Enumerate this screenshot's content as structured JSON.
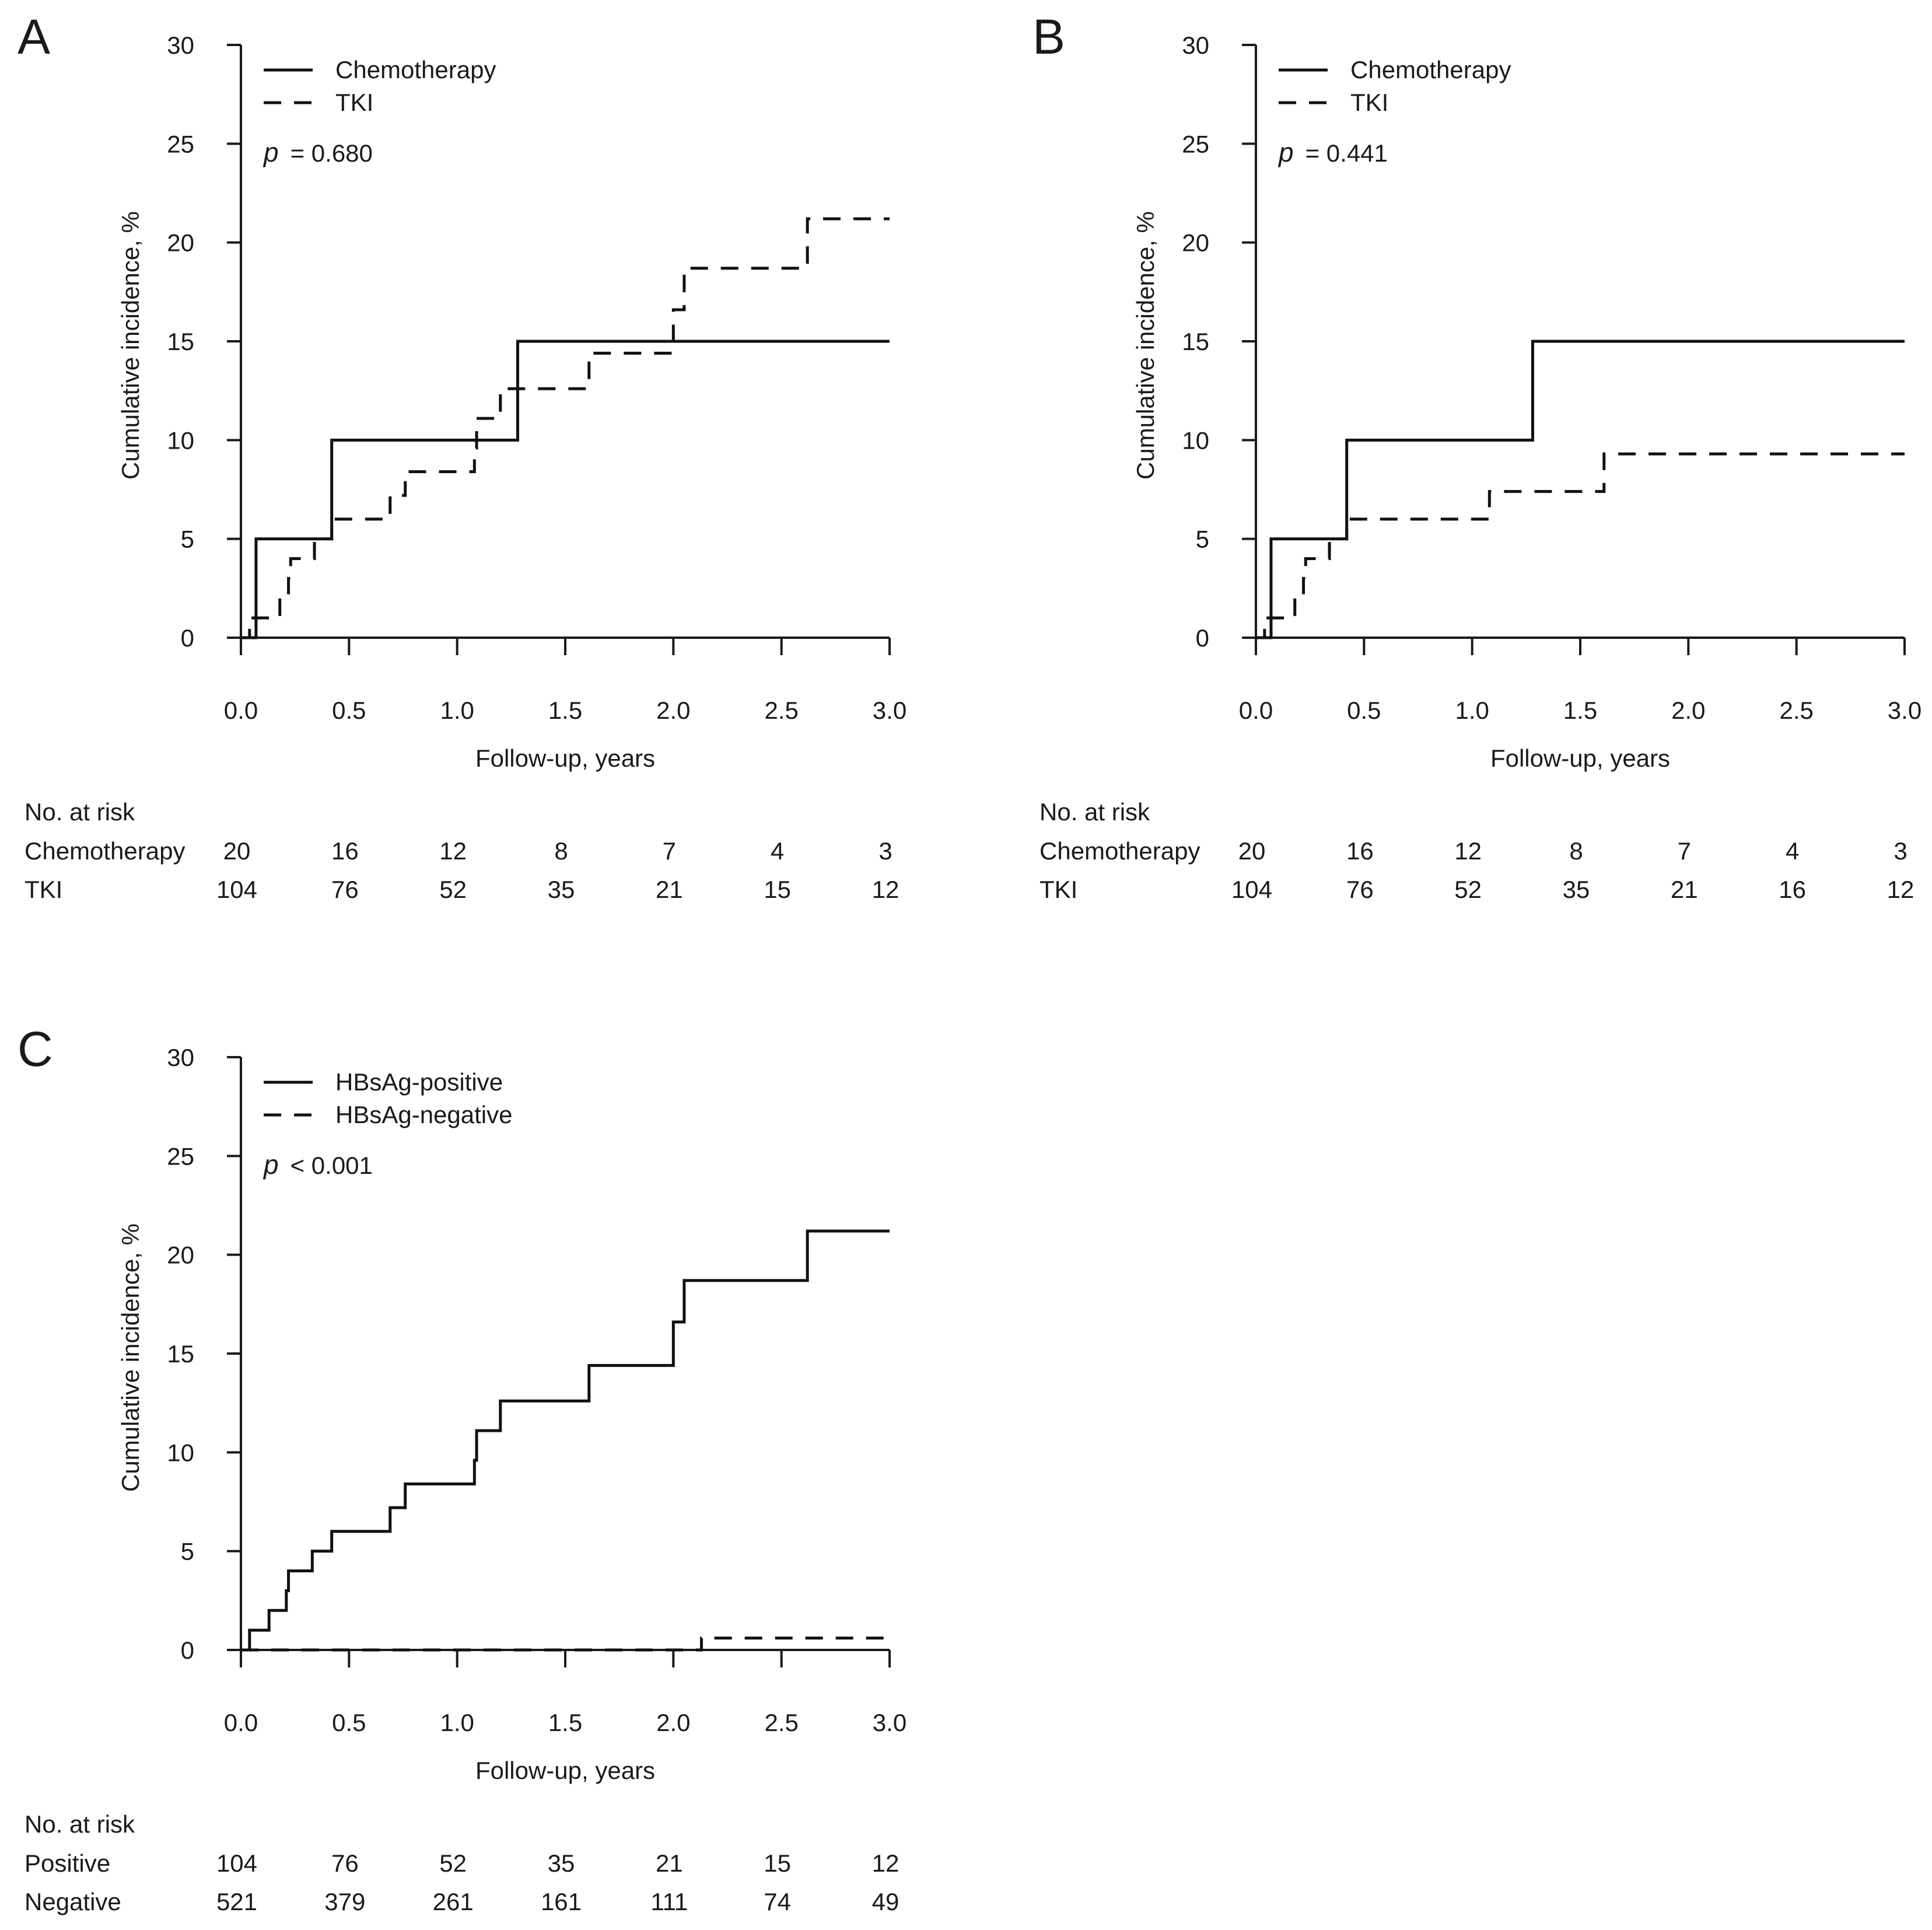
{
  "chart_data": [
    {
      "panel": "A",
      "type": "line",
      "xlabel": "Follow-up, years",
      "ylabel": "Cumulative incidence, %",
      "xlim": [
        0,
        3
      ],
      "ylim": [
        0,
        30
      ],
      "xticks": [
        "0.0",
        "0.5",
        "1.0",
        "1.5",
        "2.0",
        "2.5",
        "3.0"
      ],
      "yticks": [
        "0",
        "5",
        "10",
        "15",
        "20",
        "25",
        "30"
      ],
      "p_label": "p",
      "p_value": "= 0.680",
      "legend_position": "top-left",
      "series": [
        {
          "name": "Chemotherapy",
          "style": "solid",
          "steps": [
            [
              0,
              0
            ],
            [
              0.07,
              5
            ],
            [
              0.42,
              10
            ],
            [
              1.28,
              15
            ],
            [
              3.0,
              15
            ]
          ]
        },
        {
          "name": "TKI",
          "style": "dashed",
          "steps": [
            [
              0,
              0
            ],
            [
              0.04,
              1
            ],
            [
              0.12,
              1
            ],
            [
              0.18,
              2
            ],
            [
              0.22,
              3
            ],
            [
              0.23,
              4
            ],
            [
              0.32,
              4
            ],
            [
              0.34,
              5
            ],
            [
              0.42,
              6
            ],
            [
              0.69,
              7.2
            ],
            [
              0.76,
              8.4
            ],
            [
              1.08,
              9.6
            ],
            [
              1.09,
              11.1
            ],
            [
              1.2,
              12.6
            ],
            [
              1.61,
              14.4
            ],
            [
              2.0,
              16.6
            ],
            [
              2.05,
              18.7
            ],
            [
              2.62,
              21.2
            ],
            [
              3.0,
              21.2
            ]
          ]
        }
      ],
      "risk_table": {
        "title": "No. at risk",
        "rows": [
          {
            "label": "Chemotherapy",
            "values": [
              "20",
              "16",
              "12",
              "8",
              "7",
              "4",
              "3"
            ]
          },
          {
            "label": "TKI",
            "values": [
              "104",
              "76",
              "52",
              "35",
              "21",
              "15",
              "12"
            ]
          }
        ]
      }
    },
    {
      "panel": "B",
      "type": "line",
      "xlabel": "Follow-up, years",
      "ylabel": "Cumulative incidence, %",
      "xlim": [
        0,
        3
      ],
      "ylim": [
        0,
        30
      ],
      "xticks": [
        "0.0",
        "0.5",
        "1.0",
        "1.5",
        "2.0",
        "2.5",
        "3.0"
      ],
      "yticks": [
        "0",
        "5",
        "10",
        "15",
        "20",
        "25",
        "30"
      ],
      "p_label": "p",
      "p_value": "= 0.441",
      "legend_position": "top-left",
      "series": [
        {
          "name": "Chemotherapy",
          "style": "solid",
          "steps": [
            [
              0,
              0
            ],
            [
              0.07,
              5
            ],
            [
              0.42,
              10
            ],
            [
              1.28,
              15
            ],
            [
              3.0,
              15
            ]
          ]
        },
        {
          "name": "TKI",
          "style": "dashed",
          "steps": [
            [
              0,
              0
            ],
            [
              0.04,
              1
            ],
            [
              0.12,
              1
            ],
            [
              0.18,
              2
            ],
            [
              0.22,
              3
            ],
            [
              0.23,
              4
            ],
            [
              0.32,
              4
            ],
            [
              0.34,
              5
            ],
            [
              0.42,
              6
            ],
            [
              1.08,
              7.4
            ],
            [
              1.61,
              9.3
            ],
            [
              3.0,
              9.3
            ]
          ]
        }
      ],
      "risk_table": {
        "title": "No. at risk",
        "rows": [
          {
            "label": "Chemotherapy",
            "values": [
              "20",
              "16",
              "12",
              "8",
              "7",
              "4",
              "3"
            ]
          },
          {
            "label": "TKI",
            "values": [
              "104",
              "76",
              "52",
              "35",
              "21",
              "16",
              "12"
            ]
          }
        ]
      }
    },
    {
      "panel": "C",
      "type": "line",
      "xlabel": "Follow-up, years",
      "ylabel": "Cumulative incidence, %",
      "xlim": [
        0,
        3
      ],
      "ylim": [
        0,
        30
      ],
      "xticks": [
        "0.0",
        "0.5",
        "1.0",
        "1.5",
        "2.0",
        "2.5",
        "3.0"
      ],
      "yticks": [
        "0",
        "5",
        "10",
        "15",
        "20",
        "25",
        "30"
      ],
      "p_label": "p",
      "p_value": "< 0.001",
      "legend_position": "top-left",
      "series": [
        {
          "name": "HBsAg-positive",
          "style": "solid",
          "steps": [
            [
              0,
              0
            ],
            [
              0.04,
              1
            ],
            [
              0.13,
              2
            ],
            [
              0.21,
              3
            ],
            [
              0.22,
              4
            ],
            [
              0.33,
              5
            ],
            [
              0.42,
              6
            ],
            [
              0.69,
              7.2
            ],
            [
              0.76,
              8.4
            ],
            [
              1.08,
              9.6
            ],
            [
              1.09,
              11.1
            ],
            [
              1.2,
              12.6
            ],
            [
              1.61,
              14.4
            ],
            [
              2.0,
              16.6
            ],
            [
              2.05,
              18.7
            ],
            [
              2.62,
              21.2
            ],
            [
              3.0,
              21.2
            ]
          ]
        },
        {
          "name": "HBsAg-negative",
          "style": "dashed",
          "steps": [
            [
              0,
              0
            ],
            [
              2.13,
              0.6
            ],
            [
              3.0,
              0.6
            ]
          ]
        }
      ],
      "risk_table": {
        "title": "No. at risk",
        "rows": [
          {
            "label": "Positive",
            "values": [
              "104",
              "76",
              "52",
              "35",
              "21",
              "15",
              "12"
            ]
          },
          {
            "label": "Negative",
            "values": [
              "521",
              "379",
              "261",
              "161",
              "111",
              "74",
              "49"
            ]
          }
        ]
      }
    }
  ]
}
